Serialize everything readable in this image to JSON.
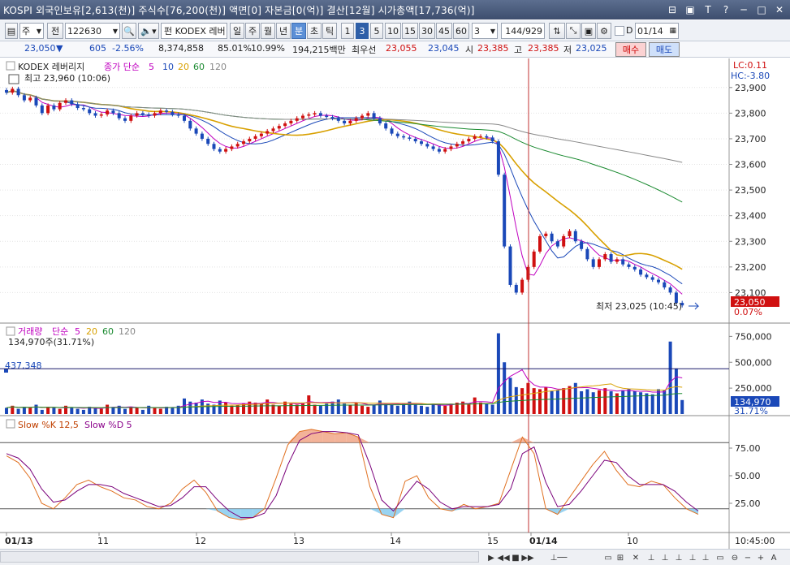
{
  "window": {
    "title": "KOSPI 외국인보유[2,613(천)] 주식수[76,200(천)] 액면[0] 자본금[0(억)] 결산[12월] 시가총액[17,736(억)]",
    "controls": [
      "⊟",
      "▣",
      "T",
      "?",
      "─",
      "□",
      "✕"
    ]
  },
  "toolbar": {
    "interval_unit": "주",
    "prev_label": "전",
    "code": "122630",
    "stock_name": "KODEX 레버",
    "name_prefix": "펀",
    "period_buttons": [
      "일",
      "주",
      "월",
      "년",
      "분",
      "초",
      "틱"
    ],
    "active_period": "분",
    "minute_buttons": [
      "1",
      "3",
      "5",
      "10",
      "15",
      "30",
      "45",
      "60"
    ],
    "active_minute": "3",
    "minute_select": "3",
    "count": "144",
    "count_total": "/929",
    "date_d": "D",
    "date_value": "01/14"
  },
  "quote": {
    "price": "23,050",
    "direction": "▼",
    "change": "605",
    "change_pct": "-2.56%",
    "volume": "8,374,858",
    "vol_ratio": "85.01%",
    "turnover": "10.99%",
    "amount": "194,215백만",
    "best_label": "최우선",
    "best_ask": "23,055",
    "best_bid": "23,045",
    "open_label": "시",
    "open": "23,385",
    "high_label": "고",
    "high": "23,385",
    "low_label": "저",
    "low": "23,025",
    "buy_label": "매수",
    "sell_label": "매도"
  },
  "chart_data": [
    {
      "type": "candlestick",
      "name": "KODEX 레버리지",
      "ma_label": "종가 단순",
      "ma_periods": [
        "5",
        "10",
        "20",
        "60",
        "120"
      ],
      "ma_colors": [
        "#c000c0",
        "#1a48b8",
        "#d8a000",
        "#1a8a30",
        "#888888"
      ],
      "high_annotation": "최고 23,960 (10:06)",
      "low_annotation": "최저 23,025 (10:45)",
      "lc_label": "LC:0.11",
      "hc_label": "HC:-3.80",
      "last_price_label": "23,050",
      "last_pct_label": "0.07%",
      "ylim": [
        23000,
        23950
      ],
      "y_ticks": [
        "23,900",
        "23,800",
        "23,700",
        "23,600",
        "23,500",
        "23,400",
        "23,300",
        "23,200",
        "23,100"
      ],
      "y_tick_values": [
        23900,
        23800,
        23700,
        23600,
        23500,
        23400,
        23300,
        23200,
        23100
      ],
      "closes": [
        23880,
        23895,
        23870,
        23850,
        23860,
        23830,
        23800,
        23830,
        23815,
        23840,
        23850,
        23835,
        23820,
        23815,
        23800,
        23790,
        23795,
        23810,
        23800,
        23780,
        23770,
        23790,
        23800,
        23795,
        23790,
        23800,
        23810,
        23805,
        23795,
        23790,
        23770,
        23740,
        23720,
        23700,
        23680,
        23660,
        23650,
        23660,
        23670,
        23680,
        23690,
        23700,
        23710,
        23720,
        23730,
        23740,
        23750,
        23760,
        23770,
        23780,
        23790,
        23795,
        23800,
        23790,
        23785,
        23780,
        23770,
        23760,
        23770,
        23780,
        23790,
        23800,
        23780,
        23760,
        23740,
        23720,
        23710,
        23705,
        23700,
        23690,
        23680,
        23670,
        23660,
        23650,
        23660,
        23670,
        23680,
        23690,
        23700,
        23710,
        23710,
        23705,
        23690,
        23560,
        23280,
        23130,
        23100,
        23150,
        23200,
        23260,
        23320,
        23330,
        23300,
        23280,
        23320,
        23340,
        23300,
        23270,
        23230,
        23200,
        23230,
        23250,
        23220,
        23230,
        23210,
        23200,
        23190,
        23170,
        23160,
        23150,
        23140,
        23120,
        23100,
        23060,
        23050
      ],
      "candle_first_x": 8,
      "candle_spacing": 7.3
    },
    {
      "type": "bar",
      "name": "거래량",
      "ma_label": "단순",
      "ma_periods": [
        "5",
        "20",
        "60",
        "120"
      ],
      "current_label": "134,970주(31.71%)",
      "ref_line_label": "437,348",
      "ref_line_value": 437348,
      "last_value_label": "134,970",
      "last_pct_label": "31.71%",
      "ylim": [
        0,
        800000
      ],
      "y_ticks": [
        "750,000",
        "500,000",
        "250,000"
      ],
      "y_tick_values": [
        750000,
        500000,
        250000
      ],
      "values": [
        60000,
        80000,
        50000,
        70000,
        60000,
        90000,
        40000,
        70000,
        60000,
        50000,
        80000,
        60000,
        50000,
        40000,
        70000,
        60000,
        50000,
        90000,
        60000,
        80000,
        50000,
        70000,
        60000,
        40000,
        80000,
        60000,
        50000,
        70000,
        60000,
        80000,
        150000,
        120000,
        110000,
        140000,
        100000,
        90000,
        130000,
        110000,
        80000,
        90000,
        100000,
        120000,
        110000,
        100000,
        140000,
        90000,
        80000,
        120000,
        100000,
        90000,
        110000,
        180000,
        90000,
        80000,
        100000,
        120000,
        140000,
        100000,
        90000,
        110000,
        80000,
        70000,
        90000,
        130000,
        100000,
        90000,
        80000,
        100000,
        120000,
        90000,
        80000,
        70000,
        100000,
        90000,
        80000,
        100000,
        110000,
        120000,
        100000,
        160000,
        110000,
        100000,
        90000,
        780000,
        500000,
        350000,
        260000,
        250000,
        300000,
        250000,
        240000,
        260000,
        220000,
        230000,
        250000,
        270000,
        300000,
        220000,
        240000,
        210000,
        230000,
        250000,
        220000,
        200000,
        230000,
        240000,
        220000,
        210000,
        200000,
        190000,
        240000,
        230000,
        700000,
        440000,
        134970
      ]
    },
    {
      "type": "line",
      "name": "Slow %K 12,5",
      "name2": "Slow %D 5",
      "ylim": [
        0,
        100
      ],
      "y_ticks": [
        "75.00",
        "50.00",
        "25.00"
      ],
      "y_tick_values": [
        75,
        50,
        25
      ],
      "upper_line": 80,
      "lower_line": 20,
      "k_values": [
        68,
        62,
        48,
        25,
        20,
        30,
        42,
        46,
        40,
        36,
        30,
        28,
        22,
        20,
        25,
        38,
        46,
        35,
        18,
        12,
        10,
        12,
        20,
        48,
        78,
        90,
        92,
        90,
        88,
        89,
        85,
        40,
        15,
        12,
        45,
        50,
        30,
        20,
        18,
        24,
        20,
        22,
        25,
        55,
        85,
        70,
        20,
        15,
        30,
        45,
        60,
        72,
        55,
        42,
        40,
        45,
        42,
        30,
        20,
        15
      ],
      "d_values": [
        70,
        66,
        56,
        38,
        26,
        28,
        36,
        42,
        42,
        40,
        34,
        30,
        26,
        22,
        23,
        30,
        40,
        40,
        28,
        18,
        12,
        12,
        16,
        32,
        60,
        82,
        88,
        90,
        90,
        89,
        87,
        60,
        28,
        18,
        32,
        45,
        38,
        26,
        20,
        22,
        22,
        22,
        24,
        38,
        70,
        76,
        44,
        22,
        24,
        36,
        50,
        64,
        62,
        50,
        42,
        42,
        42,
        36,
        26,
        18
      ]
    }
  ],
  "x_axis": {
    "labels": [
      "01/13",
      "11",
      "12",
      "13",
      "14",
      "15",
      "01/14",
      "10"
    ],
    "time_label": "10:45:00"
  }
}
